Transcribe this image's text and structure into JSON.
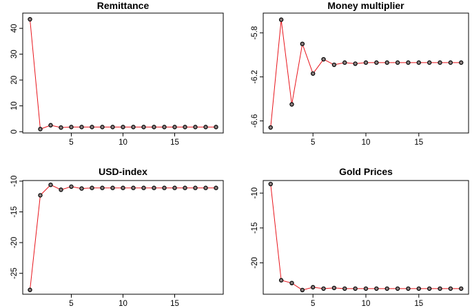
{
  "chart_data": [
    {
      "type": "line",
      "title": "Remittance",
      "xlabel": "",
      "ylabel": "",
      "x": [
        1,
        2,
        3,
        4,
        5,
        6,
        7,
        8,
        9,
        10,
        11,
        12,
        13,
        14,
        15,
        16,
        17,
        18,
        19
      ],
      "values": [
        43.5,
        1.0,
        2.5,
        1.6,
        1.8,
        1.8,
        1.8,
        1.8,
        1.8,
        1.8,
        1.8,
        1.8,
        1.8,
        1.8,
        1.8,
        1.8,
        1.8,
        1.8,
        1.8
      ],
      "xlim": [
        0.3,
        19.7
      ],
      "ylim": [
        -0.5,
        45.9
      ],
      "xticks": [
        5,
        10,
        15
      ],
      "yticks": [
        0,
        10,
        20,
        30,
        40
      ],
      "grid": false,
      "line_color": "#e8141b"
    },
    {
      "type": "line",
      "title": "Money multiplier",
      "xlabel": "",
      "ylabel": "",
      "x": [
        1,
        2,
        3,
        4,
        5,
        6,
        7,
        8,
        9,
        10,
        11,
        12,
        13,
        14,
        15,
        16,
        17,
        18,
        19
      ],
      "values": [
        -6.66,
        -5.68,
        -6.45,
        -5.9,
        -6.17,
        -6.04,
        -6.09,
        -6.07,
        -6.08,
        -6.07,
        -6.07,
        -6.07,
        -6.07,
        -6.07,
        -6.07,
        -6.07,
        -6.07,
        -6.07,
        -6.07
      ],
      "xlim": [
        0.3,
        19.7
      ],
      "ylim": [
        -6.71,
        -5.62
      ],
      "xticks": [
        5,
        10,
        15
      ],
      "yticks": [
        -6.6,
        -6.2,
        -5.8
      ],
      "grid": false,
      "line_color": "#e8141b"
    },
    {
      "type": "line",
      "title": "USD-index",
      "xlabel": "",
      "ylabel": "",
      "x": [
        1,
        2,
        3,
        4,
        5,
        6,
        7,
        8,
        9,
        10,
        11,
        12,
        13,
        14,
        15,
        16,
        17,
        18,
        19
      ],
      "values": [
        -27.7,
        -12.3,
        -10.6,
        -11.4,
        -10.9,
        -11.2,
        -11.1,
        -11.1,
        -11.1,
        -11.1,
        -11.1,
        -11.1,
        -11.1,
        -11.1,
        -11.1,
        -11.1,
        -11.1,
        -11.1,
        -11.1
      ],
      "xlim": [
        0.3,
        19.7
      ],
      "ylim": [
        -28.4,
        -9.9
      ],
      "xticks": [
        5,
        10,
        15
      ],
      "yticks": [
        -25,
        -20,
        -15,
        -10
      ],
      "grid": false,
      "line_color": "#e8141b"
    },
    {
      "type": "line",
      "title": "Gold Prices",
      "xlabel": "",
      "ylabel": "",
      "x": [
        1,
        2,
        3,
        4,
        5,
        6,
        7,
        8,
        9,
        10,
        11,
        12,
        13,
        14,
        15,
        16,
        17,
        18,
        19
      ],
      "values": [
        -8.7,
        -22.5,
        -22.9,
        -23.9,
        -23.5,
        -23.7,
        -23.6,
        -23.7,
        -23.7,
        -23.7,
        -23.7,
        -23.7,
        -23.7,
        -23.7,
        -23.7,
        -23.7,
        -23.7,
        -23.7,
        -23.7
      ],
      "xlim": [
        0.3,
        19.7
      ],
      "ylim": [
        -24.5,
        -8.2
      ],
      "xticks": [
        5,
        10,
        15
      ],
      "yticks": [
        -20,
        -15,
        -10
      ],
      "grid": false,
      "line_color": "#e8141b"
    }
  ]
}
